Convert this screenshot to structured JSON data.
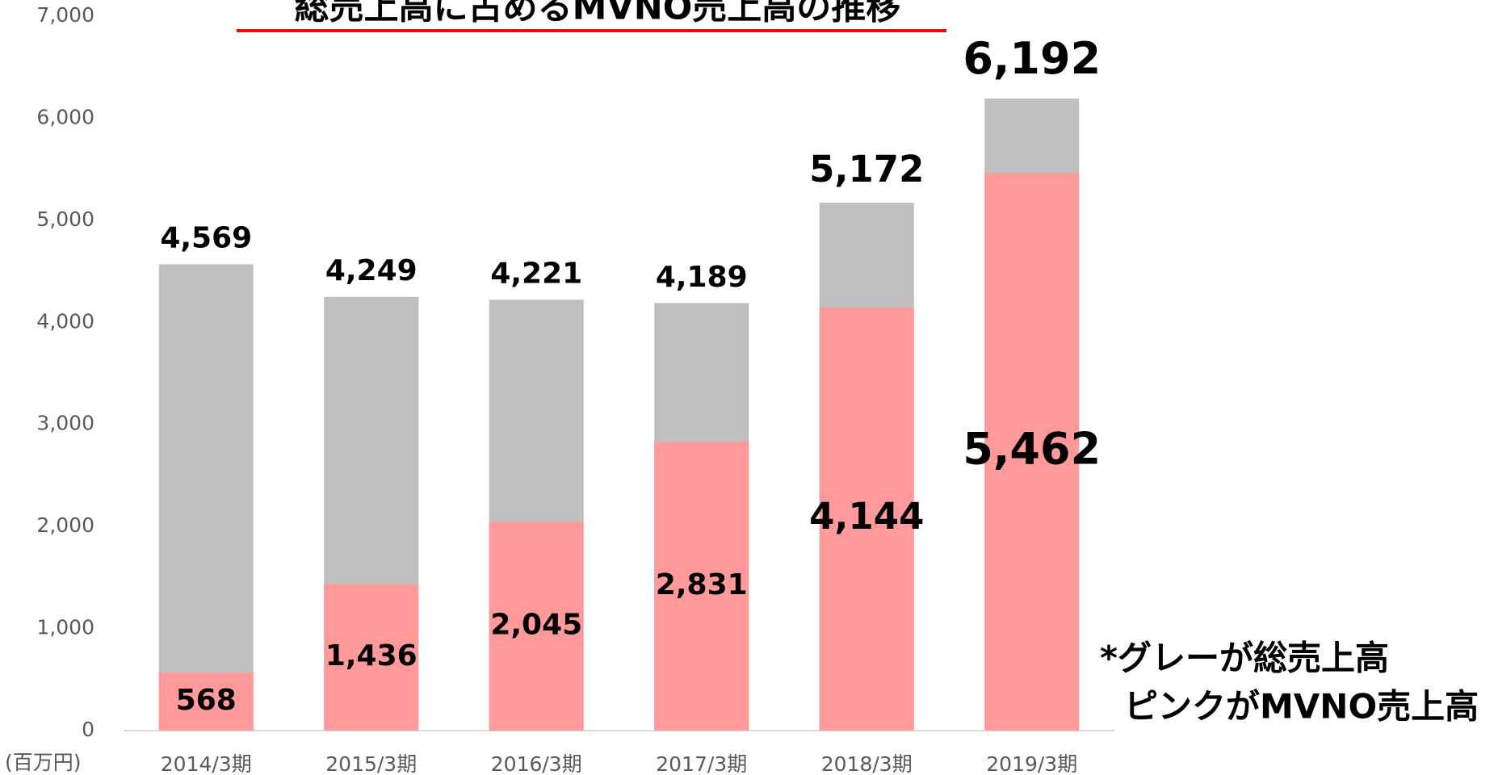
{
  "chart_data": {
    "type": "bar",
    "title": "総売上高に占めるMVNO売上高の推移",
    "categories": [
      "2014/3期",
      "2015/3期",
      "2016/3期",
      "2017/3期",
      "2018/3期",
      "2019/3期"
    ],
    "series": [
      {
        "name": "総売上高",
        "color": "#bfbfbf",
        "values": [
          4569,
          4249,
          4221,
          4189,
          5172,
          6192
        ],
        "value_labels": [
          "4,569",
          "4,249",
          "4,221",
          "4,189",
          "5,172",
          "6,192"
        ]
      },
      {
        "name": "MVNO売上高",
        "color": "#ff999a",
        "values": [
          568,
          1436,
          2045,
          2831,
          4144,
          5462
        ],
        "value_labels": [
          "568",
          "1,436",
          "2,045",
          "2,831",
          "4,144",
          "5,462"
        ]
      }
    ],
    "ylim": [
      0,
      7000
    ],
    "yticks": [
      0,
      {
        "value": 1000,
        "label": "1,000"
      },
      {
        "value": 2000,
        "label": "2,000"
      },
      {
        "value": 3000,
        "label": "3,000"
      },
      {
        "value": 4000,
        "label": "4,000"
      },
      {
        "value": 5000,
        "label": "5,000"
      },
      {
        "value": 6000,
        "label": "6,000"
      },
      {
        "value": 7000,
        "label": "7,000"
      }
    ],
    "unit_label": "(百万円)",
    "annotations": [
      "*グレーが総売上高",
      "ピンクがMVNO売上高"
    ],
    "grid": false
  }
}
